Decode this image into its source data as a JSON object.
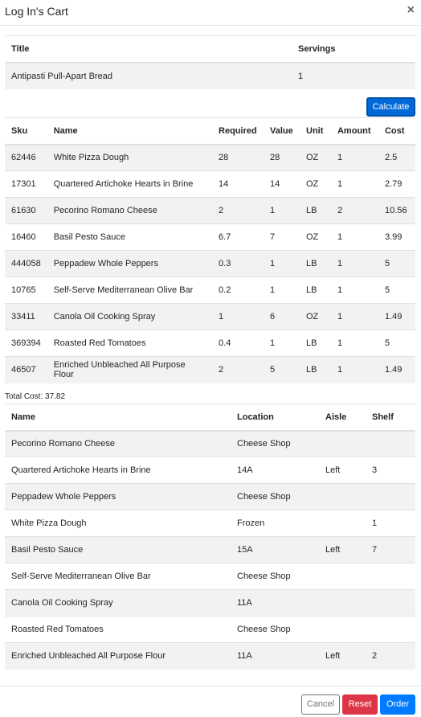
{
  "modal": {
    "title": "Log In's Cart",
    "close_label": "×"
  },
  "recipe_table": {
    "headers": {
      "title": "Title",
      "servings": "Servings"
    },
    "rows": [
      {
        "title": "Antipasti Pull-Apart Bread",
        "servings": "1"
      }
    ]
  },
  "calculate_label": "Calculate",
  "items_table": {
    "headers": {
      "sku": "Sku",
      "name": "Name",
      "required": "Required",
      "value": "Value",
      "unit": "Unit",
      "amount": "Amount",
      "cost": "Cost"
    },
    "rows": [
      {
        "sku": "62446",
        "name": "White Pizza Dough",
        "required": "28",
        "value": "28",
        "unit": "OZ",
        "amount": "1",
        "cost": "2.5"
      },
      {
        "sku": "17301",
        "name": "Quartered Artichoke Hearts in Brine",
        "required": "14",
        "value": "14",
        "unit": "OZ",
        "amount": "1",
        "cost": "2.79"
      },
      {
        "sku": "61630",
        "name": "Pecorino Romano Cheese",
        "required": "2",
        "value": "1",
        "unit": "LB",
        "amount": "2",
        "cost": "10.56"
      },
      {
        "sku": "16460",
        "name": "Basil Pesto Sauce",
        "required": "6.7",
        "value": "7",
        "unit": "OZ",
        "amount": "1",
        "cost": "3.99"
      },
      {
        "sku": "444058",
        "name": "Peppadew Whole Peppers",
        "required": "0.3",
        "value": "1",
        "unit": "LB",
        "amount": "1",
        "cost": "5"
      },
      {
        "sku": "10765",
        "name": "Self-Serve Mediterranean Olive Bar",
        "required": "0.2",
        "value": "1",
        "unit": "LB",
        "amount": "1",
        "cost": "5"
      },
      {
        "sku": "33411",
        "name": "Canola Oil Cooking Spray",
        "required": "1",
        "value": "6",
        "unit": "OZ",
        "amount": "1",
        "cost": "1.49"
      },
      {
        "sku": "369394",
        "name": "Roasted Red Tomatoes",
        "required": "0.4",
        "value": "1",
        "unit": "LB",
        "amount": "1",
        "cost": "5"
      },
      {
        "sku": "46507",
        "name": "Enriched Unbleached All Purpose Flour",
        "required": "2",
        "value": "5",
        "unit": "LB",
        "amount": "1",
        "cost": "1.49"
      }
    ]
  },
  "total_cost": "Total Cost: 37.82",
  "location_table": {
    "headers": {
      "name": "Name",
      "location": "Location",
      "aisle": "Aisle",
      "shelf": "Shelf"
    },
    "rows": [
      {
        "name": "Pecorino Romano Cheese",
        "location": "Cheese Shop",
        "aisle": "",
        "shelf": ""
      },
      {
        "name": "Quartered Artichoke Hearts in Brine",
        "location": "14A",
        "aisle": "Left",
        "shelf": "3"
      },
      {
        "name": "Peppadew Whole Peppers",
        "location": "Cheese Shop",
        "aisle": "",
        "shelf": ""
      },
      {
        "name": "White Pizza Dough",
        "location": "Frozen",
        "aisle": "",
        "shelf": "1"
      },
      {
        "name": "Basil Pesto Sauce",
        "location": "15A",
        "aisle": "Left",
        "shelf": "7"
      },
      {
        "name": "Self-Serve Mediterranean Olive Bar",
        "location": "Cheese Shop",
        "aisle": "",
        "shelf": ""
      },
      {
        "name": "Canola Oil Cooking Spray",
        "location": "11A",
        "aisle": "",
        "shelf": ""
      },
      {
        "name": "Roasted Red Tomatoes",
        "location": "Cheese Shop",
        "aisle": "",
        "shelf": ""
      },
      {
        "name": "Enriched Unbleached All Purpose Flour",
        "location": "11A",
        "aisle": "Left",
        "shelf": "2"
      }
    ]
  },
  "footer": {
    "cancel_label": "Cancel",
    "reset_label": "Reset",
    "order_label": "Order"
  }
}
